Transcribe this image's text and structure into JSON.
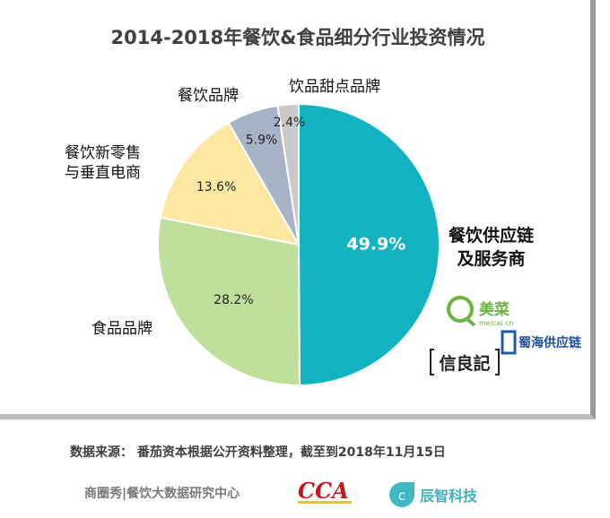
{
  "chart_data": {
    "type": "pie",
    "title": "2014-2018年餐饮&食品细分行业投资情况",
    "start": "top, clockwise",
    "slices": [
      {
        "label": "餐饮供应链及服务商",
        "value": 49.9,
        "value_label": "49.9%",
        "color": "#12b3c1"
      },
      {
        "label": "食品品牌",
        "value": 28.2,
        "value_label": "28.2%",
        "color": "#bfe09a"
      },
      {
        "label": "餐饮新零售与垂直电商",
        "value": 13.6,
        "value_label": "13.6%",
        "color": "#fde8a2"
      },
      {
        "label": "餐饮品牌",
        "value": 5.9,
        "value_label": "5.9%",
        "color": "#a9b3c7"
      },
      {
        "label": "饮品甜点品牌",
        "value": 2.4,
        "value_label": "2.4%",
        "color": "#c9c9c9"
      }
    ]
  },
  "labels": {
    "supply_line1": "餐饮供应链",
    "supply_line2": "及服务商",
    "food": "食品品牌",
    "retail_line1": "餐饮新零售",
    "retail_line2": "与垂直电商",
    "catering": "餐饮品牌",
    "drinks": "饮品甜点品牌"
  },
  "logos": {
    "meicai": "美菜",
    "meicai_sub": "meicai.cn",
    "shuhai": "蜀海供应链",
    "xinliangji": "信良記"
  },
  "source": "数据来源：  番茄资本根据公开资料整理，截至到2018年11月15日",
  "footer": {
    "org": "商圈秀|餐饮大数据研究中心",
    "cca": "CCA",
    "chenzhi": "辰智科技"
  }
}
